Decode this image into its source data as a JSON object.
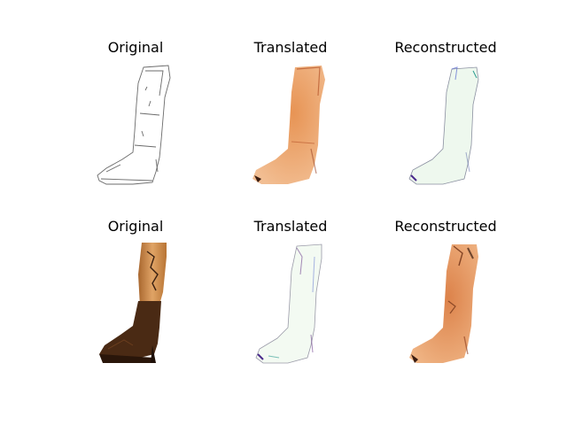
{
  "figure": {
    "background": "#ffffff",
    "rows": [
      {
        "panels": [
          {
            "title": "Original",
            "content": "boot-sketch-outline"
          },
          {
            "title": "Translated",
            "content": "boot-generated-orange"
          },
          {
            "title": "Reconstructed",
            "content": "boot-sketch-reconstructed"
          }
        ]
      },
      {
        "panels": [
          {
            "title": "Original",
            "content": "boot-photo-brown"
          },
          {
            "title": "Translated",
            "content": "boot-sketch-generated"
          },
          {
            "title": "Reconstructed",
            "content": "boot-photo-reconstructed"
          }
        ]
      }
    ]
  },
  "colors": {
    "outline": "#6b6b6b",
    "orange": "#d9773a",
    "orange_light": "#efb07c",
    "brown_dark": "#4a2a14",
    "tan": "#c9864a",
    "pale_green": "#eaf7ec",
    "purple_edge": "#6b3a8c"
  }
}
